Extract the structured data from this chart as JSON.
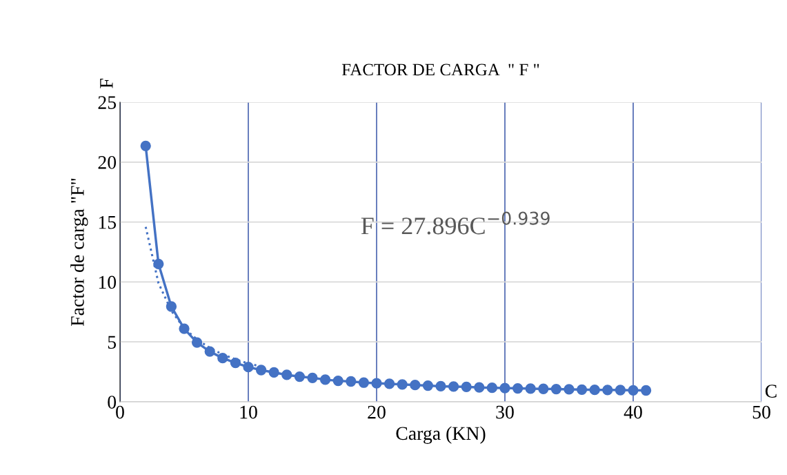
{
  "chart_data": {
    "type": "line",
    "title": "FACTOR DE CARGA  \" F \"",
    "xlabel": "Carga (KN)",
    "ylabel": "Factor de carga \"F\"",
    "xlim": [
      0,
      50
    ],
    "xticks": [
      0,
      10,
      20,
      30,
      40,
      50
    ],
    "ylim": [
      0,
      25
    ],
    "yticks": [
      0,
      5,
      10,
      15,
      20,
      25
    ],
    "grid": true,
    "series": [
      {
        "color": "#4472c4",
        "marker": "circle",
        "line_style": "solid",
        "x": [
          2,
          3,
          4,
          5,
          6,
          7,
          8,
          9,
          10,
          11,
          12,
          13,
          14,
          15,
          16,
          17,
          18,
          19,
          20,
          21,
          22,
          23,
          24,
          25,
          26,
          27,
          28,
          29,
          30,
          31,
          32,
          33,
          34,
          35,
          36,
          37,
          38,
          39,
          40,
          41
        ],
        "values": [
          21.35,
          11.5,
          7.95,
          6.1,
          4.95,
          4.2,
          3.65,
          3.25,
          2.9,
          2.65,
          2.45,
          2.25,
          2.1,
          2.0,
          1.85,
          1.75,
          1.7,
          1.6,
          1.55,
          1.5,
          1.45,
          1.4,
          1.35,
          1.3,
          1.27,
          1.25,
          1.2,
          1.17,
          1.15,
          1.12,
          1.1,
          1.08,
          1.06,
          1.04,
          1.02,
          1.0,
          0.99,
          0.98,
          0.96,
          0.95
        ]
      },
      {
        "color": "#4472c4",
        "marker": "none",
        "line_style": "dotted",
        "x": [
          2,
          3,
          4,
          5,
          6,
          7,
          8,
          9,
          10,
          11
        ],
        "values": [
          14.6,
          9.9,
          7.6,
          6.15,
          5.2,
          4.5,
          3.95,
          3.55,
          3.2,
          2.95
        ]
      }
    ],
    "annotations": [
      "F = 27.896C$^{−0.939}$",
      "F",
      "C"
    ]
  }
}
